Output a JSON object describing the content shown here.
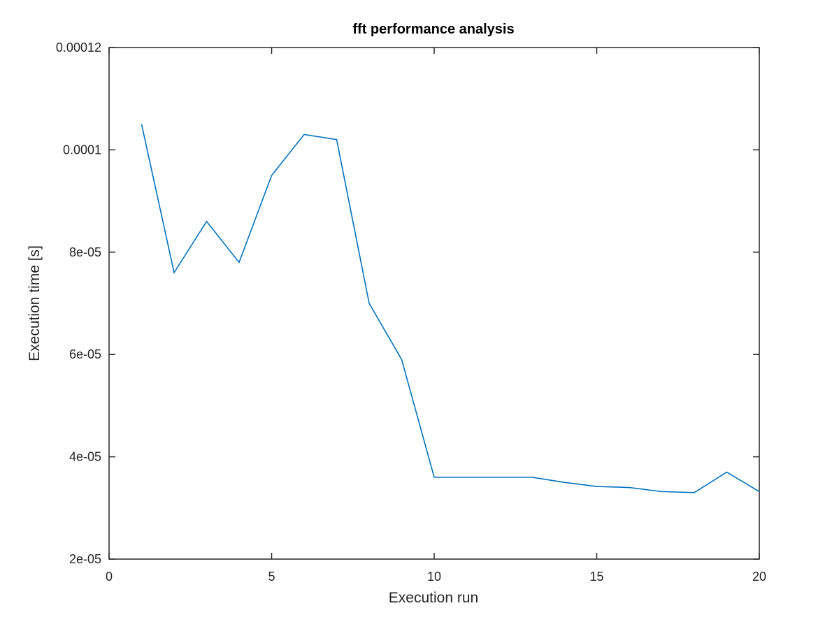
{
  "chart_data": {
    "type": "line",
    "title": "fft performance analysis",
    "xlabel": "Execution run",
    "ylabel": "Execution time [s]",
    "xlim": [
      0,
      20
    ],
    "ylim": [
      2e-05,
      0.00012
    ],
    "xticks": [
      0,
      5,
      10,
      15,
      20
    ],
    "xtick_labels": [
      "0",
      "5",
      "10",
      "15",
      "20"
    ],
    "yticks": [
      2e-05,
      4e-05,
      6e-05,
      8e-05,
      0.0001,
      0.00012
    ],
    "ytick_labels": [
      "2e-05",
      "4e-05",
      "6e-05",
      "8e-05",
      "0.0001",
      "0.00012"
    ],
    "grid": false,
    "box": true,
    "series": [
      {
        "color": "#0072bd",
        "x": [
          1,
          2,
          3,
          4,
          5,
          6,
          7,
          8,
          9,
          10,
          11,
          12,
          13,
          14,
          15,
          16,
          17,
          18,
          19,
          20
        ],
        "y": [
          0.000105,
          7.6e-05,
          8.6e-05,
          7.8e-05,
          9.5e-05,
          0.000103,
          0.000102,
          7e-05,
          5.9e-05,
          3.6e-05,
          3.6e-05,
          3.6e-05,
          3.6e-05,
          3.5e-05,
          3.42e-05,
          3.4e-05,
          3.32e-05,
          3.3e-05,
          3.7e-05,
          3.32e-05
        ]
      }
    ]
  }
}
